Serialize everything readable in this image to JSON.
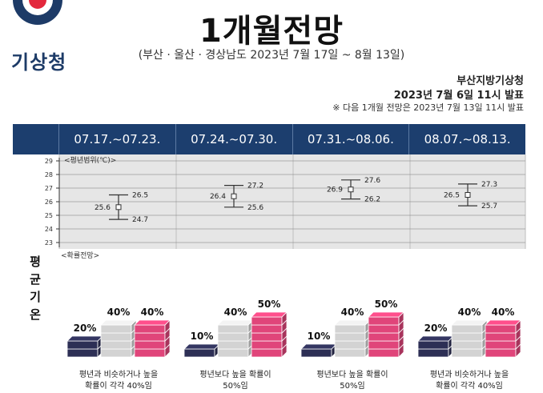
{
  "header": {
    "logo_text": "기상청",
    "title": "1개월전망",
    "subtitle": "(부산 · 울산 · 경상남도 2023년 7월 17일 ~ 8월 13일)",
    "issuer": "부산지방기상청",
    "issued": "2023년 7월 6일 11시 발표",
    "notice": "※ 다음 1개월 전망은 2023년 7월 13일 11시 발표"
  },
  "colors": {
    "header_bar": "#1c3e6e",
    "below": "#2d2f55",
    "similar": "#d3d3d3",
    "above": "#e0457a",
    "chart_bg": "#e6e6e6"
  },
  "section_label": "평균기온",
  "weeks": [
    {
      "period": "07.17.~07.23.",
      "low": 24.7,
      "mean": 25.6,
      "high": 26.5,
      "below_pct": "20%",
      "similar_pct": "40%",
      "above_pct": "40%",
      "below": 20,
      "similar": 40,
      "above": 40,
      "caption_line1": "평년과 비슷하거나 높을",
      "caption_line2": "확률이 각각 40%임"
    },
    {
      "period": "07.24.~07.30.",
      "low": 25.6,
      "mean": 26.4,
      "high": 27.2,
      "below_pct": "10%",
      "similar_pct": "40%",
      "above_pct": "50%",
      "below": 10,
      "similar": 40,
      "above": 50,
      "caption_line1": "평년보다 높을 확률이",
      "caption_line2": "50%임"
    },
    {
      "period": "07.31.~08.06.",
      "low": 26.2,
      "mean": 26.9,
      "high": 27.6,
      "below_pct": "10%",
      "similar_pct": "40%",
      "above_pct": "50%",
      "below": 10,
      "similar": 40,
      "above": 50,
      "caption_line1": "평년보다 높을 확률이",
      "caption_line2": "50%임"
    },
    {
      "period": "08.07.~08.13.",
      "low": 25.7,
      "mean": 26.5,
      "high": 27.3,
      "below_pct": "20%",
      "similar_pct": "40%",
      "above_pct": "40%",
      "below": 20,
      "similar": 40,
      "above": 40,
      "caption_line1": "평년과 비슷하거나 높을",
      "caption_line2": "확률이 각각 40%임"
    }
  ],
  "chart_data": {
    "type": "scatter",
    "title": "<평년범위(℃)>",
    "ylim": [
      23,
      29
    ],
    "yticks": [
      "23",
      "24",
      "25",
      "26",
      "27",
      "28",
      "29"
    ],
    "categories": [
      "07.17.~07.23.",
      "07.24.~07.30.",
      "07.31.~08.06.",
      "08.07.~08.13."
    ],
    "series": [
      {
        "name": "low",
        "values": [
          24.7,
          25.6,
          26.2,
          25.7
        ]
      },
      {
        "name": "mean",
        "values": [
          25.6,
          26.4,
          26.9,
          26.5
        ]
      },
      {
        "name": "high",
        "values": [
          26.5,
          27.2,
          27.6,
          27.3
        ]
      }
    ],
    "grid": true
  },
  "prob_title": "<확률전망>"
}
